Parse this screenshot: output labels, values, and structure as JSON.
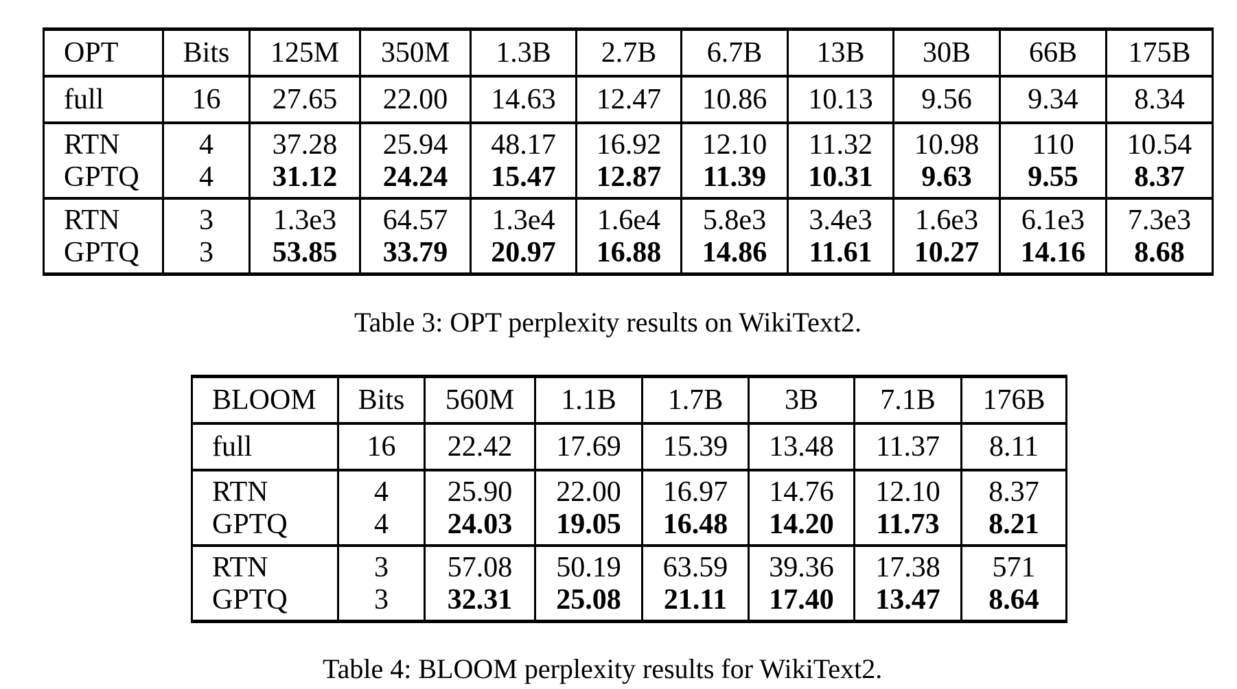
{
  "opt_table": {
    "header": [
      "OPT",
      "Bits",
      "125M",
      "350M",
      "1.3B",
      "2.7B",
      "6.7B",
      "13B",
      "30B",
      "66B",
      "175B"
    ],
    "full": [
      "full",
      "16",
      "27.65",
      "22.00",
      "14.63",
      "12.47",
      "10.86",
      "10.13",
      "9.56",
      "9.34",
      "8.34"
    ],
    "rtn4": [
      "RTN",
      "4",
      "37.28",
      "25.94",
      "48.17",
      "16.92",
      "12.10",
      "11.32",
      "10.98",
      "110",
      "10.54"
    ],
    "gptq4": [
      "GPTQ",
      "4",
      "31.12",
      "24.24",
      "15.47",
      "12.87",
      "11.39",
      "10.31",
      "9.63",
      "9.55",
      "8.37"
    ],
    "rtn3": [
      "RTN",
      "3",
      "1.3e3",
      "64.57",
      "1.3e4",
      "1.6e4",
      "5.8e3",
      "3.4e3",
      "1.6e3",
      "6.1e3",
      "7.3e3"
    ],
    "gptq3": [
      "GPTQ",
      "3",
      "53.85",
      "33.79",
      "20.97",
      "16.88",
      "14.86",
      "11.61",
      "10.27",
      "14.16",
      "8.68"
    ],
    "caption": "Table 3: OPT perplexity results on WikiText2."
  },
  "bloom_table": {
    "header": [
      "BLOOM",
      "Bits",
      "560M",
      "1.1B",
      "1.7B",
      "3B",
      "7.1B",
      "176B"
    ],
    "full": [
      "full",
      "16",
      "22.42",
      "17.69",
      "15.39",
      "13.48",
      "11.37",
      "8.11"
    ],
    "rtn4": [
      "RTN",
      "4",
      "25.90",
      "22.00",
      "16.97",
      "14.76",
      "12.10",
      "8.37"
    ],
    "gptq4": [
      "GPTQ",
      "4",
      "24.03",
      "19.05",
      "16.48",
      "14.20",
      "11.73",
      "8.21"
    ],
    "rtn3": [
      "RTN",
      "3",
      "57.08",
      "50.19",
      "63.59",
      "39.36",
      "17.38",
      "571"
    ],
    "gptq3": [
      "GPTQ",
      "3",
      "32.31",
      "25.08",
      "21.11",
      "17.40",
      "13.47",
      "8.64"
    ],
    "caption": "Table 4: BLOOM perplexity results for WikiText2."
  }
}
